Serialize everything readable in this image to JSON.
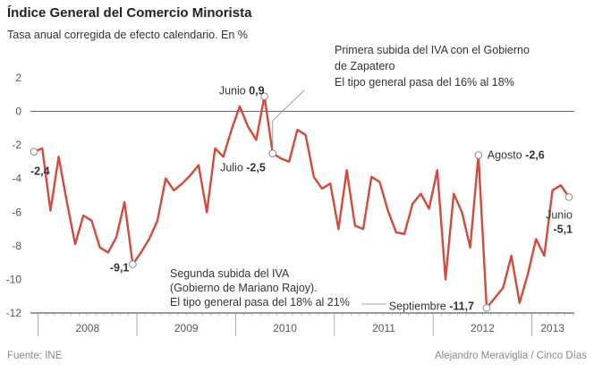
{
  "header": {
    "title": "Índice General del Comercio Minorista",
    "subtitle": "Tasa anual corregida de efecto calendario. En %"
  },
  "footer": {
    "source": "Fuente: INE",
    "credit": "Alejandro Meraviglia / Cinco Días"
  },
  "colors": {
    "line": "#d8483a",
    "axis": "#333333",
    "label": "#555555",
    "callout": "#888888"
  },
  "chart_data": {
    "type": "line",
    "title": "Índice General del Comercio Minorista",
    "subtitle": "Tasa anual corregida de efecto calendario. En %",
    "xlabel": "",
    "ylabel": "%",
    "ylim": [
      -12,
      2
    ],
    "yticks": [
      2,
      0,
      -2,
      -4,
      -6,
      -8,
      -10,
      -12
    ],
    "years": [
      "2008",
      "2009",
      "2010",
      "2011",
      "2012",
      "2013"
    ],
    "grid": false,
    "series": [
      {
        "name": "Índice General del Comercio Minorista",
        "start": "2007-12",
        "values": [
          -2.4,
          -2.2,
          -5.9,
          -2.7,
          -5.4,
          -7.9,
          -6.2,
          -6.5,
          -8.1,
          -8.4,
          -7.5,
          -5.4,
          -9.1,
          -8.4,
          -7.6,
          -6.5,
          -4.0,
          -4.7,
          -4.3,
          -3.8,
          -3.2,
          -6.0,
          -2.2,
          -2.7,
          -1.1,
          0.3,
          -0.9,
          -1.7,
          0.9,
          -2.5,
          -2.8,
          -3.0,
          -1.1,
          -1.4,
          -3.9,
          -4.6,
          -4.3,
          -7.0,
          -3.5,
          -6.8,
          -7.0,
          -3.9,
          -4.2,
          -5.9,
          -7.2,
          -7.3,
          -5.5,
          -4.9,
          -5.8,
          -3.5,
          -10.0,
          -4.9,
          -6.0,
          -8.1,
          -2.6,
          -11.7,
          -11.1,
          -10.5,
          -8.6,
          -11.4,
          -9.7,
          -7.6,
          -8.6,
          -4.7,
          -4.4,
          -5.1
        ]
      }
    ],
    "annotations": [
      {
        "point": 0,
        "text": "",
        "value": "-2,4"
      },
      {
        "point": 12,
        "text": "",
        "value": "-9,1"
      },
      {
        "point": 28,
        "text": "Junio",
        "value": "0,9"
      },
      {
        "point": 29,
        "text": "Julio",
        "value": "-2,5"
      },
      {
        "point": 54,
        "text": "Agosto",
        "value": "-2,6"
      },
      {
        "point": 55,
        "text": "Septiembre",
        "value": "-11,7"
      },
      {
        "point": 65,
        "text": "Junio",
        "value": "-5,1"
      }
    ],
    "callouts": [
      {
        "lines": [
          "Primera subida del IVA con el Gobierno",
          "de Zapatero",
          "El tipo general pasa del 16% al 18%"
        ]
      },
      {
        "lines": [
          "Segunda subida del IVA",
          "(Gobierno de Mariano Rajoy).",
          "El tipo general pasa del 18% al 21%"
        ]
      }
    ]
  }
}
